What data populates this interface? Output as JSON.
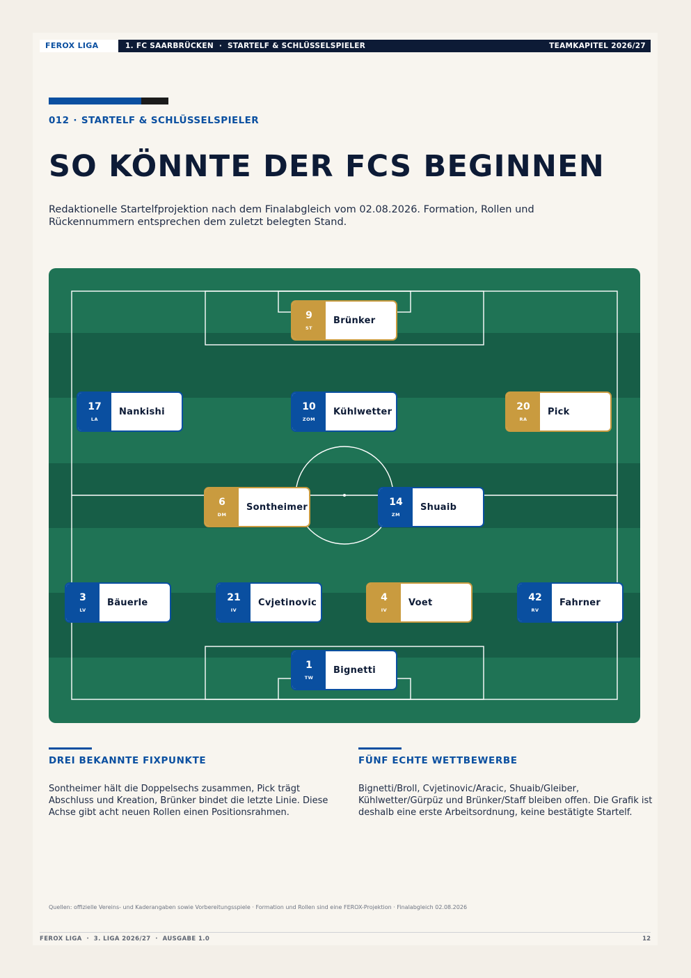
{
  "header": {
    "brand": "FEROX LIGA",
    "club_section": "1. FC SAARBRÜCKEN",
    "section": "STARTELF & SCHLÜSSELSPIELER",
    "chapter": "TEAMKAPITEL 2026/27"
  },
  "kicker": {
    "number": "012",
    "separator": "·",
    "label": "STARTELF & SCHLÜSSELSPIELER"
  },
  "title": "SO KÖNNTE DER FCS BEGINNEN",
  "intro": "Redaktionelle Startelfprojektion nach dem Finalabgleich vom 02.08.2026. Formation, Rollen und Rückennummern entsprechen dem zuletzt belegten Stand.",
  "colors": {
    "blue": "#0a4fa0",
    "gold": "#c99b3f",
    "navy": "#0d1b36",
    "pitch": "#1f7355",
    "pitch_stripe": "#175e47"
  },
  "players": [
    {
      "number": "9",
      "pos": "ST",
      "name": "Brünker",
      "highlight": true
    },
    {
      "number": "17",
      "pos": "LA",
      "name": "Nankishi",
      "highlight": false
    },
    {
      "number": "10",
      "pos": "ZOM",
      "name": "Kühlwetter",
      "highlight": false
    },
    {
      "number": "20",
      "pos": "RA",
      "name": "Pick",
      "highlight": true
    },
    {
      "number": "6",
      "pos": "DM",
      "name": "Sontheimer",
      "highlight": true
    },
    {
      "number": "14",
      "pos": "ZM",
      "name": "Shuaib",
      "highlight": false
    },
    {
      "number": "3",
      "pos": "LV",
      "name": "Bäuerle",
      "highlight": false
    },
    {
      "number": "21",
      "pos": "IV",
      "name": "Cvjetinovic",
      "highlight": false
    },
    {
      "number": "4",
      "pos": "IV",
      "name": "Voet",
      "highlight": true
    },
    {
      "number": "42",
      "pos": "RV",
      "name": "Fahrner",
      "highlight": false
    },
    {
      "number": "1",
      "pos": "TW",
      "name": "Bignetti",
      "highlight": false
    }
  ],
  "columns": [
    {
      "heading": "DREI BEKANNTE FIXPUNKTE",
      "text": "Sontheimer hält die Doppelsechs zusammen, Pick trägt Abschluss und Kreation, Brünker bindet die letzte Linie. Diese Achse gibt acht neuen Rollen einen Positionsrahmen."
    },
    {
      "heading": "FÜNF ECHTE WETTBEWERBE",
      "text": "Bignetti/Broll, Cvjetinovic/Aracic, Shuaib/Gleiber, Kühlwetter/Gürpüz und Brünker/Staff bleiben offen. Die Grafik ist deshalb eine erste Arbeitsordnung, keine bestätigte Startelf."
    }
  ],
  "sources": "Quellen: offizielle Vereins- und Kaderangaben sowie Vorbereitungsspiele · Formation und Rollen sind eine FEROX-Projektion · Finalabgleich 02.08.2026",
  "footer": {
    "left": "FEROX LIGA  ·  3. LIGA 2026/27  ·  AUSGABE 1.0",
    "page": "12"
  }
}
